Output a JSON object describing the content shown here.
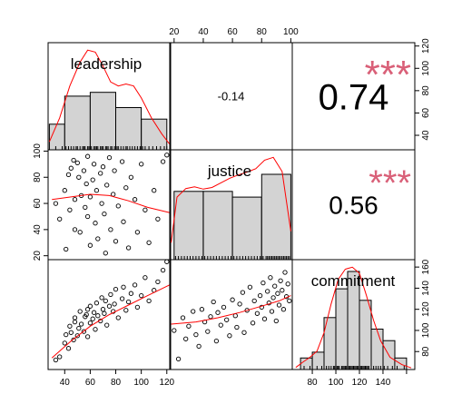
{
  "chart_data": {
    "type": "scatter-matrix",
    "variables": [
      "leadership",
      "justice",
      "commitment"
    ],
    "colors": {
      "bar_fill": "#d3d3d3",
      "density_line": "#ff0000",
      "loess_line": "#ff0000",
      "stars": "#d96078",
      "points": "#000000"
    },
    "axes": {
      "bottom": {
        "leadership": {
          "range": [
            27,
            123
          ],
          "ticks": [
            40,
            60,
            80,
            100,
            120
          ],
          "labels": [
            "40",
            "60",
            "80",
            "100",
            "120"
          ]
        },
        "commitment": {
          "range": [
            63,
            167
          ],
          "ticks": [
            80,
            100,
            120,
            140,
            160
          ],
          "labels": [
            "80",
            "100",
            "120",
            "140",
            ""
          ]
        }
      },
      "top": {
        "justice": {
          "range": [
            17,
            101
          ],
          "ticks": [
            20,
            40,
            60,
            80,
            100
          ],
          "labels": [
            "20",
            "40",
            "60",
            "80",
            "100"
          ]
        }
      },
      "left": {
        "justice": {
          "range": [
            17,
            101
          ],
          "ticks": [
            20,
            40,
            60,
            80,
            100
          ],
          "labels": [
            "20",
            "40",
            "60",
            "80",
            "100"
          ]
        }
      },
      "right": {
        "leadership": {
          "range": [
            27,
            123
          ],
          "ticks": [
            40,
            60,
            80,
            100,
            120
          ],
          "labels": [
            "40",
            "60",
            "80",
            "100",
            "120"
          ]
        },
        "commitment": {
          "range": [
            63,
            167
          ],
          "ticks": [
            80,
            100,
            120,
            140,
            160
          ],
          "labels": [
            "80",
            "100",
            "120",
            "140",
            "160"
          ]
        }
      }
    },
    "diagonal": {
      "leadership": {
        "breaks": [
          28,
          40,
          60,
          80,
          100,
          120
        ],
        "counts": [
          4,
          14,
          15,
          11,
          8
        ],
        "density": [
          [
            28,
            0.002
          ],
          [
            36,
            0.008
          ],
          [
            44,
            0.016
          ],
          [
            52,
            0.022
          ],
          [
            58,
            0.025
          ],
          [
            64,
            0.0245
          ],
          [
            70,
            0.021
          ],
          [
            76,
            0.017
          ],
          [
            82,
            0.016
          ],
          [
            88,
            0.0165
          ],
          [
            94,
            0.016
          ],
          [
            100,
            0.013
          ],
          [
            108,
            0.008
          ],
          [
            116,
            0.004
          ],
          [
            122,
            0.0015
          ]
        ],
        "rug": [
          33,
          38,
          41,
          43,
          45,
          47,
          49,
          50,
          52,
          54,
          55,
          56,
          58,
          59,
          60,
          61,
          63,
          64,
          65,
          66,
          68,
          69,
          70,
          72,
          73,
          74,
          76,
          77,
          79,
          81,
          82,
          84,
          86,
          88,
          89,
          91,
          93,
          95,
          97,
          99,
          101,
          103,
          106,
          109,
          112,
          115,
          118,
          120
        ]
      },
      "justice": {
        "breaks": [
          20,
          40,
          60,
          80,
          100
        ],
        "counts": [
          12,
          12,
          11,
          15
        ],
        "density": [
          [
            18,
            0.003
          ],
          [
            22,
            0.011
          ],
          [
            28,
            0.0125
          ],
          [
            34,
            0.0128
          ],
          [
            40,
            0.0124
          ],
          [
            46,
            0.0127
          ],
          [
            52,
            0.0135
          ],
          [
            58,
            0.0143
          ],
          [
            64,
            0.0149
          ],
          [
            70,
            0.0154
          ],
          [
            76,
            0.016
          ],
          [
            82,
            0.0175
          ],
          [
            88,
            0.018
          ],
          [
            94,
            0.0155
          ],
          [
            100,
            0.005
          ]
        ],
        "rug": [
          21,
          23,
          25,
          27,
          29,
          31,
          33,
          35,
          37,
          39,
          41,
          43,
          45,
          47,
          49,
          51,
          53,
          55,
          57,
          59,
          61,
          63,
          65,
          67,
          69,
          71,
          73,
          75,
          77,
          79,
          80,
          81,
          83,
          84,
          85,
          86,
          87,
          88,
          89,
          90,
          91,
          92,
          93,
          94,
          95,
          96,
          97,
          98,
          99
        ]
      },
      "commitment": {
        "breaks": [
          70,
          80,
          90,
          100,
          110,
          120,
          130,
          140,
          150,
          160
        ],
        "counts": [
          2,
          3,
          9,
          14,
          17,
          12,
          7,
          5,
          2
        ],
        "density": [
          [
            66,
            0.0005
          ],
          [
            72,
            0.0018
          ],
          [
            78,
            0.003
          ],
          [
            84,
            0.0045
          ],
          [
            90,
            0.009
          ],
          [
            96,
            0.016
          ],
          [
            102,
            0.022
          ],
          [
            108,
            0.0245
          ],
          [
            114,
            0.025
          ],
          [
            120,
            0.0235
          ],
          [
            126,
            0.018
          ],
          [
            132,
            0.012
          ],
          [
            138,
            0.007
          ],
          [
            146,
            0.003
          ],
          [
            156,
            0.0012
          ],
          [
            164,
            0.0004
          ]
        ],
        "rug": [
          73,
          78,
          84,
          88,
          90,
          92,
          94,
          96,
          98,
          99,
          101,
          102,
          103,
          105,
          106,
          107,
          108,
          109,
          110,
          111,
          112,
          113,
          114,
          115,
          116,
          117,
          118,
          119,
          120,
          121,
          122,
          123,
          124,
          125,
          126,
          127,
          128,
          130,
          132,
          134,
          136,
          138,
          141,
          144,
          148,
          152,
          158
        ]
      }
    },
    "upper": [
      {
        "row": 0,
        "col": 1,
        "pair": [
          "leadership",
          "justice"
        ],
        "r": "-0.14",
        "stars": "",
        "size": "small"
      },
      {
        "row": 0,
        "col": 2,
        "pair": [
          "leadership",
          "commitment"
        ],
        "r": "0.74",
        "stars": "***",
        "size": "large"
      },
      {
        "row": 1,
        "col": 2,
        "pair": [
          "justice",
          "commitment"
        ],
        "r": "0.56",
        "stars": "***",
        "size": "medium"
      }
    ],
    "scatter": {
      "leadership_justice": {
        "x": [
          33,
          36,
          40,
          41,
          43,
          44,
          45,
          47,
          48,
          48,
          50,
          51,
          52,
          53,
          55,
          56,
          57,
          58,
          58,
          60,
          60,
          62,
          63,
          64,
          65,
          66,
          68,
          69,
          70,
          71,
          72,
          73,
          75,
          76,
          78,
          79,
          80,
          82,
          85,
          86,
          88,
          90,
          92,
          95,
          97,
          100,
          103,
          106,
          110,
          113,
          117,
          120
        ],
        "y": [
          60,
          48,
          70,
          25,
          82,
          55,
          87,
          93,
          63,
          40,
          91,
          80,
          38,
          66,
          85,
          57,
          75,
          50,
          96,
          65,
          28,
          78,
          90,
          45,
          70,
          33,
          83,
          60,
          88,
          52,
          22,
          74,
          95,
          40,
          67,
          85,
          31,
          58,
          92,
          46,
          72,
          26,
          80,
          63,
          38,
          90,
          55,
          30,
          70,
          48,
          92,
          97
        ],
        "loess": [
          [
            30,
            63
          ],
          [
            45,
            65
          ],
          [
            60,
            67
          ],
          [
            75,
            66
          ],
          [
            90,
            62
          ],
          [
            105,
            57
          ],
          [
            122,
            53
          ]
        ]
      },
      "leadership_commitment": {
        "x": [
          33,
          36,
          40,
          41,
          43,
          44,
          45,
          47,
          48,
          48,
          50,
          51,
          52,
          53,
          55,
          56,
          57,
          58,
          58,
          60,
          60,
          62,
          63,
          64,
          65,
          66,
          68,
          69,
          70,
          71,
          72,
          73,
          75,
          76,
          78,
          79,
          80,
          82,
          85,
          86,
          88,
          90,
          92,
          95,
          97,
          100,
          103,
          106,
          110,
          113,
          117,
          120
        ],
        "y": [
          72,
          75,
          88,
          96,
          83,
          104,
          98,
          91,
          108,
          112,
          95,
          102,
          118,
          106,
          99,
          113,
          115,
          94,
          120,
          107,
          123,
          111,
          117,
          101,
          126,
          114,
          109,
          131,
          120,
          116,
          128,
          105,
          123,
          134,
          118,
          125,
          139,
          112,
          130,
          141,
          119,
          127,
          135,
          143,
          122,
          133,
          150,
          128,
          138,
          146,
          157,
          165
        ],
        "loess": [
          [
            30,
            74
          ],
          [
            45,
            90
          ],
          [
            60,
            104
          ],
          [
            75,
            115
          ],
          [
            90,
            124
          ],
          [
            105,
            133
          ],
          [
            122,
            143
          ]
        ]
      },
      "justice_commitment": {
        "x": [
          20,
          23,
          26,
          28,
          30,
          33,
          35,
          37,
          39,
          41,
          43,
          45,
          47,
          49,
          50,
          52,
          54,
          56,
          58,
          60,
          62,
          63,
          65,
          67,
          68,
          70,
          72,
          74,
          75,
          77,
          79,
          80,
          81,
          82,
          84,
          85,
          86,
          87,
          88,
          89,
          90,
          91,
          92,
          93,
          94,
          95,
          96,
          97,
          98,
          99
        ],
        "y": [
          100,
          73,
          112,
          92,
          104,
          118,
          96,
          85,
          120,
          108,
          99,
          113,
          127,
          90,
          117,
          105,
          122,
          110,
          95,
          129,
          114,
          103,
          125,
          136,
          98,
          119,
          141,
          107,
          128,
          116,
          133,
          122,
          145,
          111,
          137,
          126,
          150,
          118,
          131,
          142,
          109,
          135,
          124,
          147,
          138,
          120,
          155,
          132,
          144,
          128
        ],
        "loess": [
          [
            18,
            106
          ],
          [
            35,
            108
          ],
          [
            50,
            112
          ],
          [
            65,
            117
          ],
          [
            80,
            123
          ],
          [
            92,
            128
          ],
          [
            100,
            133
          ]
        ]
      }
    }
  }
}
